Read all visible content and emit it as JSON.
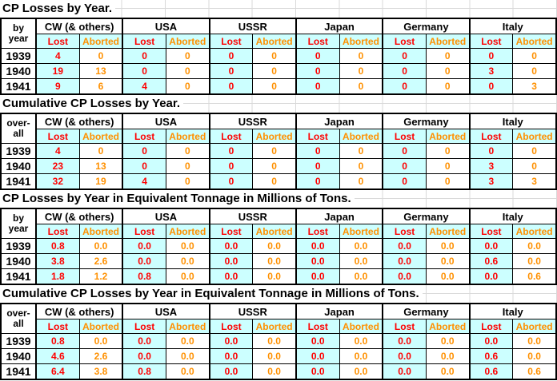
{
  "colors": {
    "lost_text": "#FF0000",
    "aborted_text": "#FF9000",
    "lost_cell_bg": "#CCFFFF",
    "gridline": "#D9D9D9",
    "table_border": "#000000"
  },
  "countries": [
    "CW (& others)",
    "USA",
    "USSR",
    "Japan",
    "Germany",
    "Italy"
  ],
  "sub_headers": {
    "lost": "Lost",
    "aborted": "Aborted"
  },
  "sections": [
    {
      "title": "CP Losses by Year.",
      "row_header": {
        "line1": "by",
        "line2": "year"
      },
      "rows": [
        {
          "year": "1939",
          "values": [
            [
              "4",
              "0"
            ],
            [
              "0",
              "0"
            ],
            [
              "0",
              "0"
            ],
            [
              "0",
              "0"
            ],
            [
              "0",
              "0"
            ],
            [
              "0",
              "0"
            ]
          ]
        },
        {
          "year": "1940",
          "values": [
            [
              "19",
              "13"
            ],
            [
              "0",
              "0"
            ],
            [
              "0",
              "0"
            ],
            [
              "0",
              "0"
            ],
            [
              "0",
              "0"
            ],
            [
              "3",
              "0"
            ]
          ]
        },
        {
          "year": "1941",
          "values": [
            [
              "9",
              "6"
            ],
            [
              "4",
              "0"
            ],
            [
              "0",
              "0"
            ],
            [
              "0",
              "0"
            ],
            [
              "0",
              "0"
            ],
            [
              "0",
              "3"
            ]
          ]
        }
      ]
    },
    {
      "title": "Cumulative CP Losses by Year.",
      "row_header": {
        "line1": "over-",
        "line2": "all"
      },
      "rows": [
        {
          "year": "1939",
          "values": [
            [
              "4",
              "0"
            ],
            [
              "0",
              "0"
            ],
            [
              "0",
              "0"
            ],
            [
              "0",
              "0"
            ],
            [
              "0",
              "0"
            ],
            [
              "0",
              "0"
            ]
          ]
        },
        {
          "year": "1940",
          "values": [
            [
              "23",
              "13"
            ],
            [
              "0",
              "0"
            ],
            [
              "0",
              "0"
            ],
            [
              "0",
              "0"
            ],
            [
              "0",
              "0"
            ],
            [
              "3",
              "0"
            ]
          ]
        },
        {
          "year": "1941",
          "values": [
            [
              "32",
              "19"
            ],
            [
              "4",
              "0"
            ],
            [
              "0",
              "0"
            ],
            [
              "0",
              "0"
            ],
            [
              "0",
              "0"
            ],
            [
              "3",
              "3"
            ]
          ]
        }
      ]
    },
    {
      "title": "CP Losses by Year in Equivalent Tonnage in Millions of Tons.",
      "row_header": {
        "line1": "by",
        "line2": "year"
      },
      "rows": [
        {
          "year": "1939",
          "values": [
            [
              "0.8",
              "0.0"
            ],
            [
              "0.0",
              "0.0"
            ],
            [
              "0.0",
              "0.0"
            ],
            [
              "0.0",
              "0.0"
            ],
            [
              "0.0",
              "0.0"
            ],
            [
              "0.0",
              "0.0"
            ]
          ]
        },
        {
          "year": "1940",
          "values": [
            [
              "3.8",
              "2.6"
            ],
            [
              "0.0",
              "0.0"
            ],
            [
              "0.0",
              "0.0"
            ],
            [
              "0.0",
              "0.0"
            ],
            [
              "0.0",
              "0.0"
            ],
            [
              "0.6",
              "0.0"
            ]
          ]
        },
        {
          "year": "1941",
          "values": [
            [
              "1.8",
              "1.2"
            ],
            [
              "0.8",
              "0.0"
            ],
            [
              "0.0",
              "0.0"
            ],
            [
              "0.0",
              "0.0"
            ],
            [
              "0.0",
              "0.0"
            ],
            [
              "0.0",
              "0.6"
            ]
          ]
        }
      ]
    },
    {
      "title": "Cumulative CP Losses by Year in Equivalent Tonnage in Millions of Tons.",
      "row_header": {
        "line1": "over-",
        "line2": "all"
      },
      "rows": [
        {
          "year": "1939",
          "values": [
            [
              "0.8",
              "0.0"
            ],
            [
              "0.0",
              "0.0"
            ],
            [
              "0.0",
              "0.0"
            ],
            [
              "0.0",
              "0.0"
            ],
            [
              "0.0",
              "0.0"
            ],
            [
              "0.0",
              "0.0"
            ]
          ]
        },
        {
          "year": "1940",
          "values": [
            [
              "4.6",
              "2.6"
            ],
            [
              "0.0",
              "0.0"
            ],
            [
              "0.0",
              "0.0"
            ],
            [
              "0.0",
              "0.0"
            ],
            [
              "0.0",
              "0.0"
            ],
            [
              "0.6",
              "0.0"
            ]
          ]
        },
        {
          "year": "1941",
          "values": [
            [
              "6.4",
              "3.8"
            ],
            [
              "0.8",
              "0.0"
            ],
            [
              "0.0",
              "0.0"
            ],
            [
              "0.0",
              "0.0"
            ],
            [
              "0.0",
              "0.0"
            ],
            [
              "0.6",
              "0.6"
            ]
          ]
        }
      ]
    }
  ]
}
